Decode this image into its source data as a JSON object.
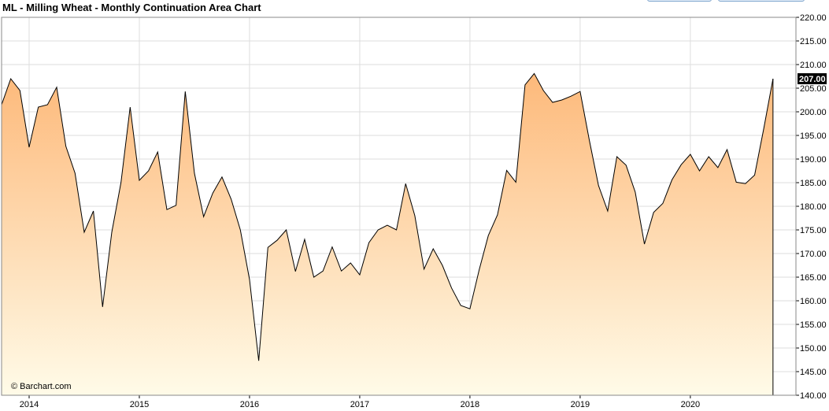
{
  "header": {
    "title": "ML - Milling Wheat - Monthly Continuation Area Chart"
  },
  "credit": "© Barchart.com",
  "chart_data": {
    "type": "area",
    "title": "ML - Milling Wheat - Monthly Continuation Area Chart",
    "xlabel": "",
    "ylabel": "",
    "ylim": [
      140,
      220
    ],
    "y_ticks": [
      "220.00",
      "215.00",
      "210.00",
      "205.00",
      "200.00",
      "195.00",
      "190.00",
      "185.00",
      "180.00",
      "175.00",
      "170.00",
      "165.00",
      "160.00",
      "155.00",
      "150.00",
      "145.00",
      "140.00"
    ],
    "x_ticks": [
      "2014",
      "2015",
      "2016",
      "2017",
      "2018",
      "2019",
      "2020"
    ],
    "grid": true,
    "last_value_label": "207.00",
    "colors": {
      "fill_top": "#fdb97a",
      "fill_bottom": "#fffbe8",
      "line": "#000000",
      "grid": "#dddddd",
      "label_bg": "#000000"
    },
    "x": [
      "2013-10",
      "2013-11",
      "2013-12",
      "2014-01",
      "2014-02",
      "2014-03",
      "2014-04",
      "2014-05",
      "2014-06",
      "2014-07",
      "2014-08",
      "2014-09",
      "2014-10",
      "2014-11",
      "2014-12",
      "2015-01",
      "2015-02",
      "2015-03",
      "2015-04",
      "2015-05",
      "2015-06",
      "2015-07",
      "2015-08",
      "2015-09",
      "2015-10",
      "2015-11",
      "2015-12",
      "2016-01",
      "2016-02",
      "2016-03",
      "2016-04",
      "2016-05",
      "2016-06",
      "2016-07",
      "2016-08",
      "2016-09",
      "2016-10",
      "2016-11",
      "2016-12",
      "2017-01",
      "2017-02",
      "2017-03",
      "2017-04",
      "2017-05",
      "2017-06",
      "2017-07",
      "2017-08",
      "2017-09",
      "2017-10",
      "2017-11",
      "2017-12",
      "2018-01",
      "2018-02",
      "2018-03",
      "2018-04",
      "2018-05",
      "2018-06",
      "2018-07",
      "2018-08",
      "2018-09",
      "2018-10",
      "2018-11",
      "2018-12",
      "2019-01",
      "2019-02",
      "2019-03",
      "2019-04",
      "2019-05",
      "2019-06",
      "2019-07",
      "2019-08",
      "2019-09",
      "2019-10",
      "2019-11",
      "2019-12",
      "2020-01",
      "2020-02",
      "2020-03",
      "2020-04",
      "2020-05",
      "2020-06",
      "2020-07",
      "2020-08",
      "2020-09",
      "2020-10"
    ],
    "series": [
      {
        "values": [
          201.5,
          207.0,
          204.5,
          192.5,
          201.0,
          201.5,
          205.2,
          192.7,
          187.0,
          174.5,
          179.0,
          158.7,
          174.5,
          185.0,
          201.0,
          185.5,
          187.5,
          191.5,
          179.3,
          180.2,
          204.3,
          187.0,
          177.8,
          182.8,
          186.2,
          181.5,
          175.0,
          164.5,
          147.3,
          171.3,
          172.8,
          175.0,
          166.2,
          173.0,
          165.0,
          166.3,
          171.4,
          166.3,
          168.0,
          165.5,
          172.3,
          175.0,
          176.0,
          175.0,
          184.8,
          178.0,
          166.7,
          171.0,
          167.5,
          162.7,
          159.0,
          158.3,
          166.5,
          173.8,
          178.2,
          187.6,
          185.1,
          205.7,
          208.1,
          204.5,
          202.0,
          202.5,
          203.3,
          204.3,
          194.0,
          184.4,
          179.0,
          190.5,
          188.7,
          183.0,
          172.0,
          178.7,
          180.6,
          185.6,
          188.8,
          191.0,
          187.5,
          190.5,
          188.2,
          192.0,
          185.1,
          184.8,
          186.6,
          196.5,
          207.0
        ]
      }
    ]
  }
}
